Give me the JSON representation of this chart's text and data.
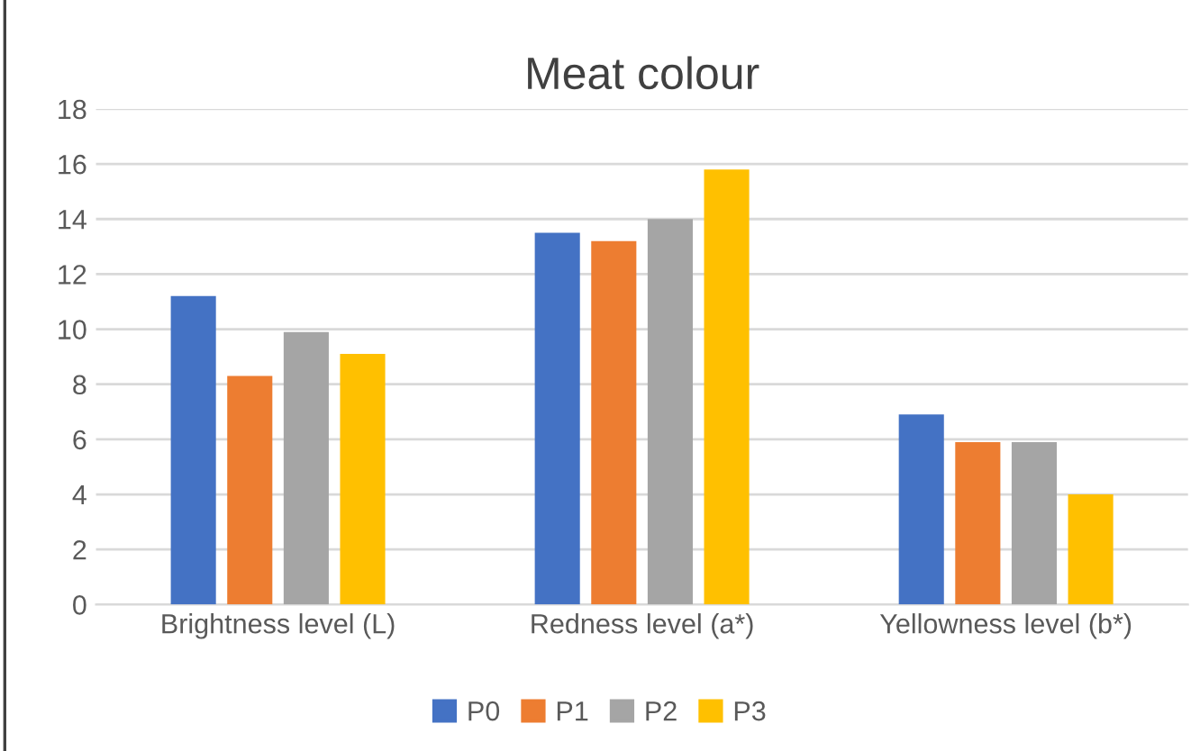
{
  "chart_data": {
    "type": "bar",
    "title": "Meat colour",
    "categories": [
      "Brightness level (L)",
      "Redness level (a*)",
      "Yellowness level (b*)"
    ],
    "series": [
      {
        "name": "P0",
        "color": "#4472c4",
        "values": [
          11.2,
          13.5,
          6.9
        ]
      },
      {
        "name": "P1",
        "color": "#ed7d31",
        "values": [
          8.3,
          13.2,
          5.9
        ]
      },
      {
        "name": "P2",
        "color": "#a5a5a5",
        "values": [
          9.9,
          14.0,
          5.9
        ]
      },
      {
        "name": "P3",
        "color": "#ffc000",
        "values": [
          9.1,
          15.8,
          4.0
        ]
      }
    ],
    "ylim": [
      0,
      18
    ],
    "yticks": [
      0,
      2,
      4,
      6,
      8,
      10,
      12,
      14,
      16,
      18
    ],
    "grid": "y",
    "legend": "bottom"
  }
}
